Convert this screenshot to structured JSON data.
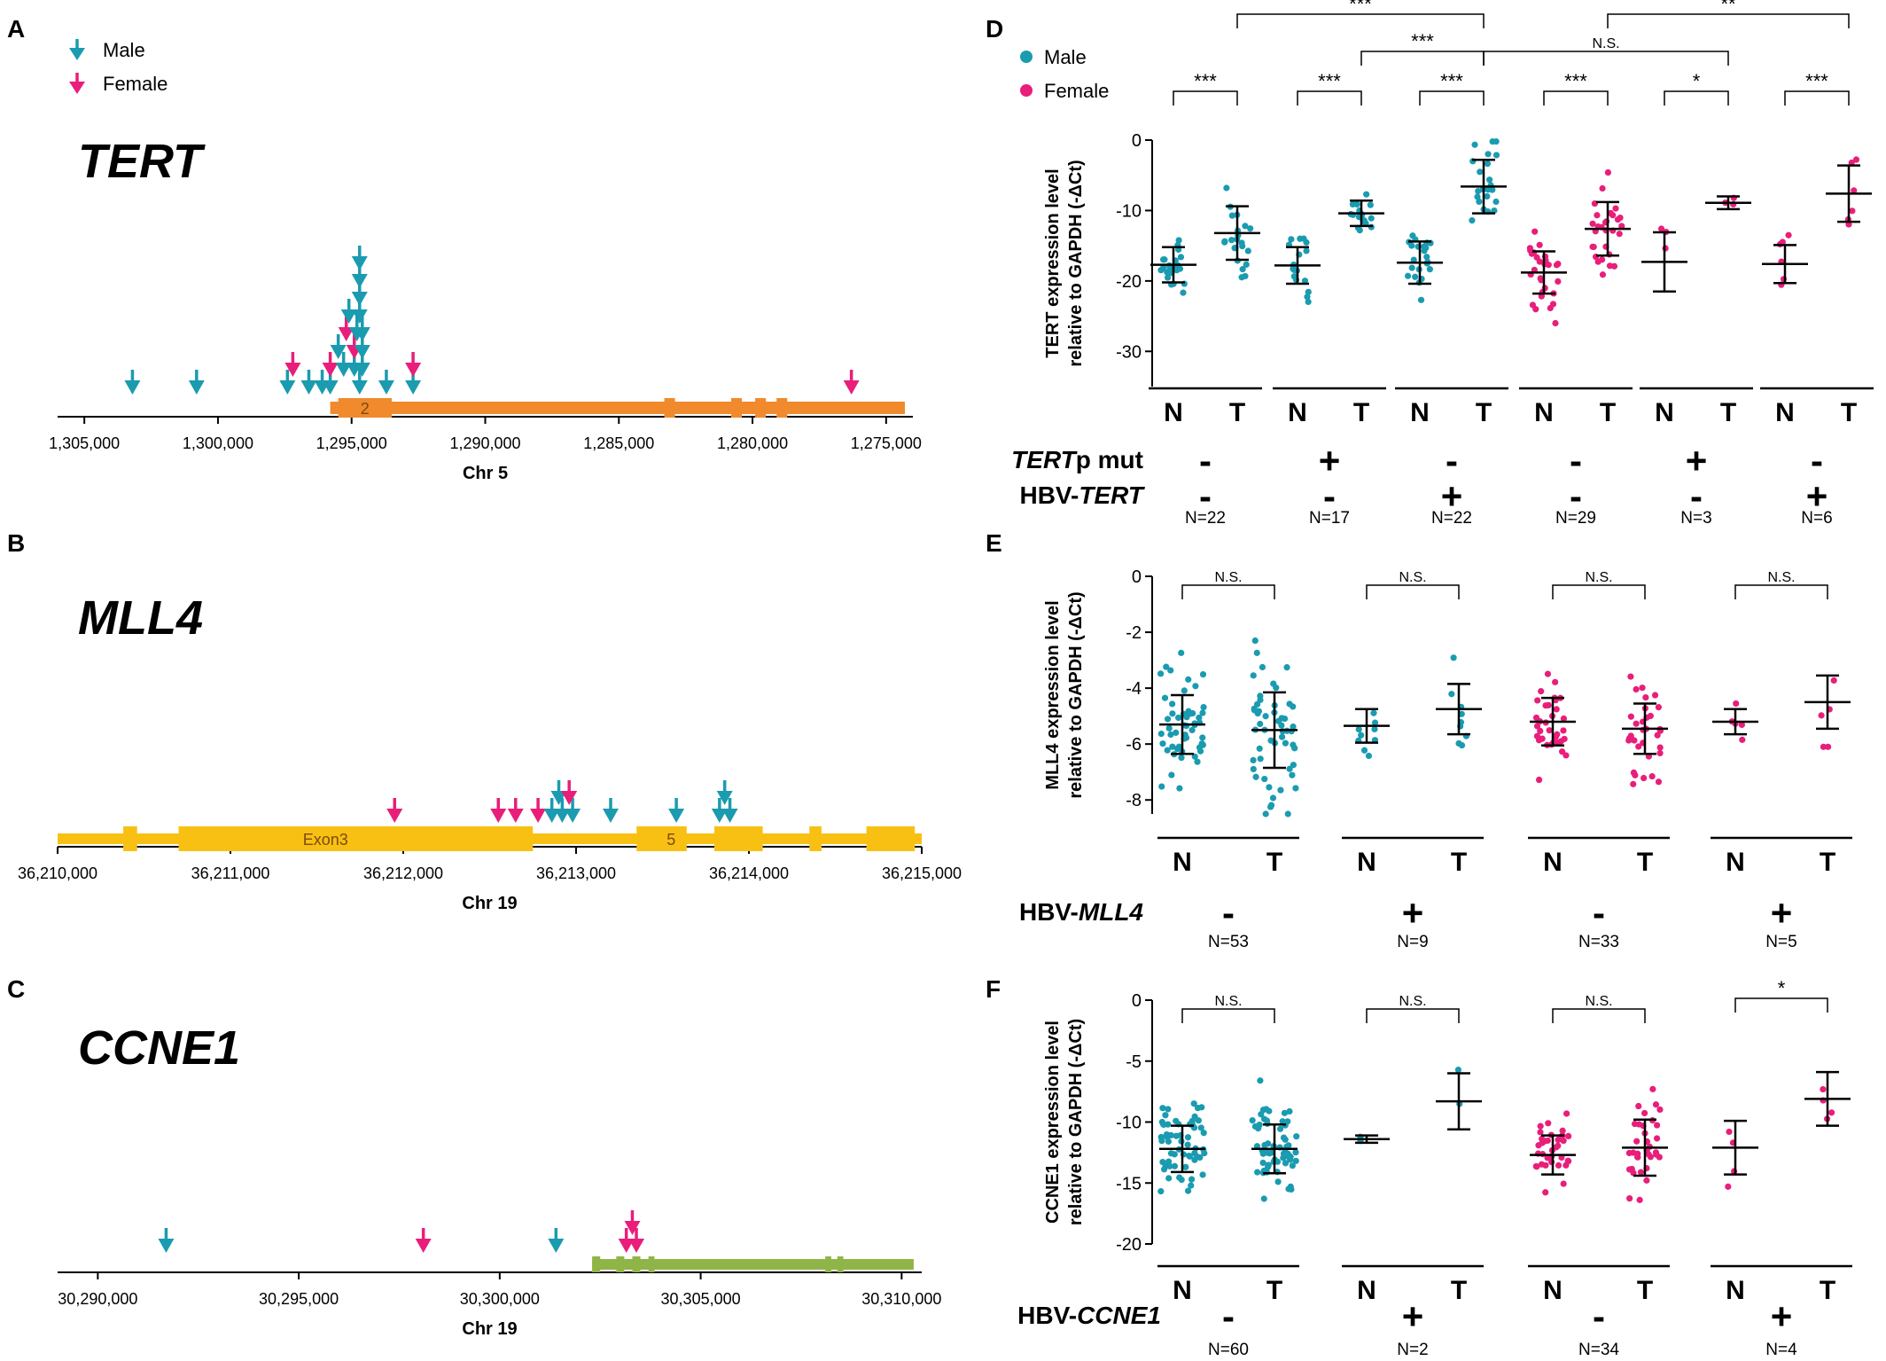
{
  "colors": {
    "male": "#1a9bb0",
    "female": "#e91e7a",
    "tert_gene": "#f08a2c",
    "mll4_gene": "#f8c012",
    "ccne1_gene": "#8fb548"
  },
  "panels": {
    "A": "A",
    "B": "B",
    "C": "C",
    "D": "D",
    "E": "E",
    "F": "F"
  },
  "legend": {
    "male": "Male",
    "female": "Female"
  },
  "genes": [
    {
      "panel": "A",
      "name": "TERT",
      "chrom_label": "Chr 5",
      "ticks": [
        "1,305,000",
        "1,300,000",
        "1,295,000",
        "1,290,000",
        "1,285,000",
        "1,280,000",
        "1,275,000"
      ],
      "tick_values": [
        1305000,
        1300000,
        1295000,
        1290000,
        1285000,
        1280000,
        1275000
      ],
      "range": [
        1306000,
        1274000
      ],
      "reversed": true,
      "exon_labels": [
        {
          "text": "2",
          "pos": 1294500
        }
      ],
      "exons": [
        [
          1295500,
          1293500
        ],
        [
          1283300,
          1282900
        ],
        [
          1280800,
          1280400
        ],
        [
          1279900,
          1279500
        ],
        [
          1279100,
          1278700
        ]
      ],
      "gene_span": [
        1295800,
        1274300
      ],
      "integrations": [
        {
          "pos": 1303200,
          "sex": "male",
          "stack": 0
        },
        {
          "pos": 1300800,
          "sex": "male",
          "stack": 0
        },
        {
          "pos": 1297400,
          "sex": "male",
          "stack": 0
        },
        {
          "pos": 1297200,
          "sex": "female",
          "stack": 1
        },
        {
          "pos": 1296600,
          "sex": "male",
          "stack": 0
        },
        {
          "pos": 1296100,
          "sex": "male",
          "stack": 0
        },
        {
          "pos": 1295800,
          "sex": "male",
          "stack": 0
        },
        {
          "pos": 1295800,
          "sex": "female",
          "stack": 1
        },
        {
          "pos": 1295500,
          "sex": "male",
          "stack": 2
        },
        {
          "pos": 1295300,
          "sex": "male",
          "stack": 1
        },
        {
          "pos": 1295200,
          "sex": "female",
          "stack": 3
        },
        {
          "pos": 1295100,
          "sex": "male",
          "stack": 4
        },
        {
          "pos": 1294900,
          "sex": "male",
          "stack": 1
        },
        {
          "pos": 1294900,
          "sex": "female",
          "stack": 2
        },
        {
          "pos": 1294800,
          "sex": "male",
          "stack": 3
        },
        {
          "pos": 1294700,
          "sex": "male",
          "stack": 0
        },
        {
          "pos": 1294700,
          "sex": "male",
          "stack": 4
        },
        {
          "pos": 1294700,
          "sex": "male",
          "stack": 5
        },
        {
          "pos": 1294700,
          "sex": "male",
          "stack": 6
        },
        {
          "pos": 1294700,
          "sex": "male",
          "stack": 7
        },
        {
          "pos": 1294600,
          "sex": "male",
          "stack": 1
        },
        {
          "pos": 1294600,
          "sex": "male",
          "stack": 2
        },
        {
          "pos": 1294600,
          "sex": "male",
          "stack": 3
        },
        {
          "pos": 1293700,
          "sex": "male",
          "stack": 0
        },
        {
          "pos": 1292700,
          "sex": "male",
          "stack": 0
        },
        {
          "pos": 1292700,
          "sex": "female",
          "stack": 1
        },
        {
          "pos": 1276300,
          "sex": "female",
          "stack": 0
        }
      ]
    },
    {
      "panel": "B",
      "name": "MLL4",
      "chrom_label": "Chr 19",
      "ticks": [
        "36,210,000",
        "36,211,000",
        "36,212,000",
        "36,213,000",
        "36,214,000",
        "36,215,000"
      ],
      "tick_values": [
        36210000,
        36211000,
        36212000,
        36213000,
        36214000,
        36215000
      ],
      "range": [
        36210000,
        36215000
      ],
      "reversed": false,
      "exon_labels": [
        {
          "text": "Exon3",
          "pos": 36211550
        },
        {
          "text": "5",
          "pos": 36213550
        }
      ],
      "exons": [
        [
          36210380,
          36210460
        ],
        [
          36210700,
          36212750
        ],
        [
          36213350,
          36213500
        ],
        [
          36213480,
          36213640
        ],
        [
          36213800,
          36214080
        ],
        [
          36214350,
          36214420
        ],
        [
          36214680,
          36214960
        ]
      ],
      "gene_span": [
        36210000,
        36215000
      ],
      "integrations": [
        {
          "pos": 36211950,
          "sex": "female",
          "stack": 0
        },
        {
          "pos": 36212550,
          "sex": "female",
          "stack": 0
        },
        {
          "pos": 36212650,
          "sex": "female",
          "stack": 0
        },
        {
          "pos": 36212780,
          "sex": "female",
          "stack": 0
        },
        {
          "pos": 36212860,
          "sex": "male",
          "stack": 0
        },
        {
          "pos": 36212920,
          "sex": "male",
          "stack": 0
        },
        {
          "pos": 36212980,
          "sex": "male",
          "stack": 0
        },
        {
          "pos": 36212900,
          "sex": "male",
          "stack": 1
        },
        {
          "pos": 36212960,
          "sex": "female",
          "stack": 1
        },
        {
          "pos": 36213200,
          "sex": "male",
          "stack": 0
        },
        {
          "pos": 36213580,
          "sex": "male",
          "stack": 0
        },
        {
          "pos": 36213830,
          "sex": "male",
          "stack": 0
        },
        {
          "pos": 36213890,
          "sex": "male",
          "stack": 0
        },
        {
          "pos": 36213860,
          "sex": "male",
          "stack": 1
        }
      ]
    },
    {
      "panel": "C",
      "name": "CCNE1",
      "chrom_label": "Chr 19",
      "ticks": [
        "30,290,000",
        "30,295,000",
        "30,300,000",
        "30,305,000",
        "30,310,000"
      ],
      "tick_values": [
        30290000,
        30295000,
        30300000,
        30305000,
        30310000
      ],
      "range": [
        30289000,
        30310500
      ],
      "reversed": false,
      "exon_labels": [],
      "exons": [
        [
          30302300,
          30302500
        ],
        [
          30302900,
          30303100
        ],
        [
          30303300,
          30303500
        ],
        [
          30303700,
          30303850
        ],
        [
          30308100,
          30308250
        ],
        [
          30308400,
          30308550
        ]
      ],
      "gene_span": [
        30302300,
        30310300
      ],
      "integrations": [
        {
          "pos": 30291700,
          "sex": "male",
          "stack": 0
        },
        {
          "pos": 30298100,
          "sex": "female",
          "stack": 0
        },
        {
          "pos": 30301400,
          "sex": "male",
          "stack": 0
        },
        {
          "pos": 30303150,
          "sex": "female",
          "stack": 0
        },
        {
          "pos": 30303400,
          "sex": "female",
          "stack": 0
        },
        {
          "pos": 30303300,
          "sex": "female",
          "stack": 1
        }
      ]
    }
  ],
  "chart_data": [
    {
      "panel": "D",
      "type": "scatter",
      "ylabel_line1": "TERT expression level",
      "ylabel_line2": "relative to GAPDH (-ΔCt)",
      "ylim": [
        -35,
        0
      ],
      "yticks": [
        0,
        -10,
        -20,
        -30
      ],
      "row_labels": [
        {
          "prefix": "TERT",
          "suffix": "p mut",
          "italic_prefix": true
        },
        {
          "prefix": "HBV-",
          "suffix": "TERT",
          "italic_suffix": true
        }
      ],
      "groups": [
        {
          "sex": "male",
          "row1": "-",
          "row2": "-",
          "n": "N=22",
          "N": {
            "mean": -17.7,
            "sd": 2.5,
            "spread": 3.5
          },
          "T": {
            "mean": -13.2,
            "sd": 3.8,
            "spread": 4
          }
        },
        {
          "sex": "male",
          "row1": "+",
          "row2": "-",
          "n": "N=17",
          "N": {
            "mean": -17.8,
            "sd": 2.6,
            "spread": 3.5
          },
          "T": {
            "mean": -10.4,
            "sd": 1.8,
            "spread": 2.5
          }
        },
        {
          "sex": "male",
          "row1": "-",
          "row2": "+",
          "n": "N=22",
          "N": {
            "mean": -17.4,
            "sd": 3.0,
            "spread": 4
          },
          "T": {
            "mean": -6.6,
            "sd": 3.8,
            "spread": 4
          }
        },
        {
          "sex": "female",
          "row1": "-",
          "row2": "-",
          "n": "N=29",
          "N": {
            "mean": -18.8,
            "sd": 3.0,
            "spread": 4.5
          },
          "T": {
            "mean": -12.6,
            "sd": 3.8,
            "spread": 5
          }
        },
        {
          "sex": "female",
          "row1": "+",
          "row2": "-",
          "n": "N=3",
          "N": {
            "mean": -17.3,
            "sd": 4.2,
            "spread": 4
          },
          "T": {
            "mean": -8.9,
            "sd": 0.9,
            "spread": 1
          }
        },
        {
          "sex": "female",
          "row1": "-",
          "row2": "+",
          "n": "N=6",
          "N": {
            "mean": -17.6,
            "sd": 2.7,
            "spread": 3
          },
          "T": {
            "mean": -7.6,
            "sd": 4.0,
            "spread": 4
          }
        }
      ],
      "pair_sig": [
        "***",
        "***",
        "***",
        "***",
        "*",
        "***"
      ],
      "cross_sig": [
        {
          "from": [
            0,
            "T"
          ],
          "to": [
            2,
            "T"
          ],
          "label": "***",
          "level": 3
        },
        {
          "from": [
            1,
            "T"
          ],
          "to": [
            2,
            "T"
          ],
          "label": "***",
          "level": 2
        },
        {
          "from": [
            2,
            "T"
          ],
          "to": [
            4,
            "T"
          ],
          "label": "N.S.",
          "level": 2
        },
        {
          "from": [
            3,
            "T"
          ],
          "to": [
            5,
            "T"
          ],
          "label": "**",
          "level": 3
        }
      ]
    },
    {
      "panel": "E",
      "type": "scatter",
      "ylabel_line1": "MLL4 expression level",
      "ylabel_line2": "relative to GAPDH (-ΔCt)",
      "ylim": [
        -8.5,
        0
      ],
      "yticks": [
        0,
        -2,
        -4,
        -6,
        -8
      ],
      "row_labels": [
        {
          "prefix": "HBV-",
          "suffix": "MLL4",
          "italic_suffix": true
        }
      ],
      "groups": [
        {
          "sex": "male",
          "row1": "-",
          "n": "N=53",
          "N": {
            "mean": -5.3,
            "sd": 1.05,
            "spread": 1.6
          },
          "T": {
            "mean": -5.5,
            "sd": 1.35,
            "spread": 2
          }
        },
        {
          "sex": "male",
          "row1": "+",
          "n": "N=9",
          "N": {
            "mean": -5.35,
            "sd": 0.6,
            "spread": 0.8
          },
          "T": {
            "mean": -4.75,
            "sd": 0.9,
            "spread": 1.2
          }
        },
        {
          "sex": "female",
          "row1": "-",
          "n": "N=33",
          "N": {
            "mean": -5.2,
            "sd": 0.85,
            "spread": 1.3
          },
          "T": {
            "mean": -5.45,
            "sd": 0.9,
            "spread": 1.5
          }
        },
        {
          "sex": "female",
          "row1": "+",
          "n": "N=5",
          "N": {
            "mean": -5.2,
            "sd": 0.45,
            "spread": 0.6
          },
          "T": {
            "mean": -4.5,
            "sd": 0.95,
            "spread": 1
          }
        }
      ],
      "pair_sig": [
        "N.S.",
        "N.S.",
        "N.S.",
        "N.S."
      ],
      "cross_sig": []
    },
    {
      "panel": "F",
      "type": "scatter",
      "ylabel_line1": "CCNE1 expression level",
      "ylabel_line2": "relative to GAPDH (-ΔCt)",
      "ylim": [
        -20,
        0
      ],
      "yticks": [
        0,
        -5,
        -10,
        -15,
        -20
      ],
      "row_labels": [
        {
          "prefix": "HBV-",
          "suffix": "CCNE1",
          "italic_suffix": true
        }
      ],
      "groups": [
        {
          "sex": "male",
          "row1": "-",
          "n": "N=60",
          "N": {
            "mean": -12.2,
            "sd": 1.9,
            "spread": 3
          },
          "T": {
            "mean": -12.2,
            "sd": 2.0,
            "spread": 3.5
          }
        },
        {
          "sex": "male",
          "row1": "+",
          "n": "N=2",
          "N": {
            "mean": -11.4,
            "sd": 0.3,
            "spread": 0.3
          },
          "T": {
            "mean": -8.3,
            "sd": 2.3,
            "spread": 2
          }
        },
        {
          "sex": "female",
          "row1": "-",
          "n": "N=34",
          "N": {
            "mean": -12.7,
            "sd": 1.6,
            "spread": 2.8
          },
          "T": {
            "mean": -12.1,
            "sd": 2.3,
            "spread": 3
          }
        },
        {
          "sex": "female",
          "row1": "+",
          "n": "N=4",
          "N": {
            "mean": -12.1,
            "sd": 2.2,
            "spread": 2
          },
          "T": {
            "mean": -8.1,
            "sd": 2.2,
            "spread": 2
          }
        }
      ],
      "pair_sig": [
        "N.S.",
        "N.S.",
        "N.S.",
        "*"
      ],
      "cross_sig": []
    }
  ]
}
